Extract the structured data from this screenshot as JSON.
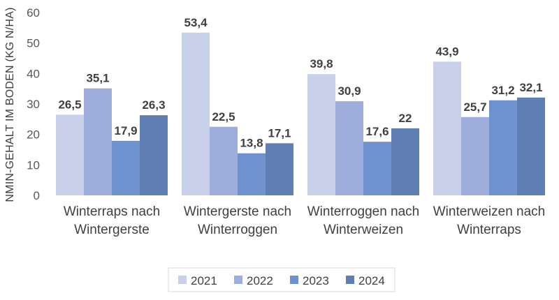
{
  "chart_data": {
    "type": "bar",
    "title": "",
    "xlabel": "",
    "ylabel": "NMIN-GEHALT IM BODEN (KG N/HA)",
    "ylim": [
      0,
      60
    ],
    "yticks": [
      0,
      10,
      20,
      30,
      40,
      50,
      60
    ],
    "grid": false,
    "legend_position": "bottom",
    "categories": [
      [
        "Winterraps nach",
        "Wintergerste"
      ],
      [
        "Wintergerste nach",
        "Winterroggen"
      ],
      [
        "Winterroggen nach",
        "Winterweizen"
      ],
      [
        "Winterweizen nach",
        "Winterraps"
      ]
    ],
    "series": [
      {
        "name": "2021",
        "color": "#c9d0ea",
        "values": [
          26.5,
          53.4,
          39.8,
          43.9
        ],
        "labels": [
          "26,5",
          "53,4",
          "39,8",
          "43,9"
        ]
      },
      {
        "name": "2022",
        "color": "#9daedc",
        "values": [
          35.1,
          22.5,
          30.9,
          25.7
        ],
        "labels": [
          "35,1",
          "22,5",
          "30,9",
          "25,7"
        ]
      },
      {
        "name": "2023",
        "color": "#6f92ce",
        "values": [
          17.9,
          13.8,
          17.6,
          31.2
        ],
        "labels": [
          "17,9",
          "13,8",
          "17,6",
          "31,2"
        ]
      },
      {
        "name": "2024",
        "color": "#5f7fb4",
        "values": [
          26.3,
          17.1,
          22,
          32.1
        ],
        "labels": [
          "26,3",
          "17,1",
          "22",
          "32,1"
        ]
      }
    ]
  }
}
